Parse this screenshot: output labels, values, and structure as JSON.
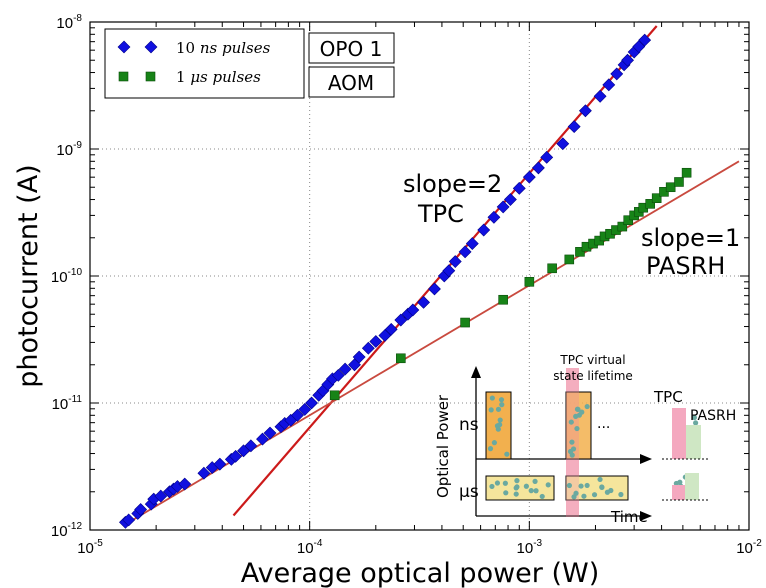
{
  "chart_data": {
    "type": "scatter",
    "title": "",
    "xlabel": "Average optical power (W)",
    "ylabel": "photocurrent (A)",
    "xscale": "log",
    "yscale": "log",
    "xlim": [
      1e-05,
      0.01
    ],
    "ylim": [
      1e-12,
      1e-08
    ],
    "x_ticks": [
      {
        "value": 1e-05,
        "base": "10",
        "exp": "-5"
      },
      {
        "value": 0.0001,
        "base": "10",
        "exp": "-4"
      },
      {
        "value": 0.001,
        "base": "10",
        "exp": "-3"
      },
      {
        "value": 0.01,
        "base": "10",
        "exp": "-2"
      }
    ],
    "y_ticks": [
      {
        "value": 1e-12,
        "base": "10",
        "exp": "-12"
      },
      {
        "value": 1e-11,
        "base": "10",
        "exp": "-11"
      },
      {
        "value": 1e-10,
        "base": "10",
        "exp": "-10"
      },
      {
        "value": 1e-09,
        "base": "10",
        "exp": "-9"
      },
      {
        "value": 1e-08,
        "base": "10",
        "exp": "-8"
      }
    ],
    "grid": "dotted, major decades",
    "legend_placement": "top-left",
    "series": [
      {
        "name": "10 ns pulses",
        "legend_main": "10 ",
        "legend_unit": "ns",
        "legend_rest": " pulses",
        "label_box": "OPO 1",
        "marker": "diamond",
        "color": "#1010e0",
        "x": [
          1.45e-05,
          1.5e-05,
          1.65e-05,
          1.7e-05,
          1.9e-05,
          1.95e-05,
          2.1e-05,
          2.3e-05,
          2.4e-05,
          2.5e-05,
          2.7e-05,
          3.3e-05,
          3.6e-05,
          3.9e-05,
          4.4e-05,
          4.6e-05,
          5e-05,
          5.4e-05,
          6.1e-05,
          6.6e-05,
          7.4e-05,
          7.7e-05,
          8.2e-05,
          8.8e-05,
          9.5e-05,
          0.000102,
          0.00011,
          0.000115,
          0.000121,
          0.000127,
          0.000135,
          0.000145,
          0.00016,
          0.000168,
          0.000185,
          0.0002,
          0.00022,
          0.000235,
          0.00026,
          0.00028,
          0.000295,
          0.00033,
          0.00037,
          0.00041,
          0.00043,
          0.00046,
          0.00051,
          0.00055,
          0.00062,
          0.00069,
          0.00076,
          0.00082,
          0.0009,
          0.001,
          0.0011,
          0.0012,
          0.00142,
          0.0016,
          0.0018,
          0.0021,
          0.0023,
          0.0025,
          0.0027,
          0.0028,
          0.003,
          0.00315,
          0.00335
        ],
        "y": [
          1.15e-12,
          1.2e-12,
          1.35e-12,
          1.45e-12,
          1.6e-12,
          1.75e-12,
          1.85e-12,
          2e-12,
          2.1e-12,
          2.2e-12,
          2.3e-12,
          2.8e-12,
          3.1e-12,
          3.3e-12,
          3.6e-12,
          3.8e-12,
          4.2e-12,
          4.6e-12,
          5.2e-12,
          5.8e-12,
          6.5e-12,
          6.9e-12,
          7.3e-12,
          8e-12,
          8.9e-12,
          1e-11,
          1.15e-11,
          1.25e-11,
          1.4e-11,
          1.55e-11,
          1.65e-11,
          1.85e-11,
          2e-11,
          2.3e-11,
          2.7e-11,
          3.05e-11,
          3.4e-11,
          3.8e-11,
          4.5e-11,
          5e-11,
          5.4e-11,
          6.2e-11,
          7.9e-11,
          1e-10,
          1.1e-10,
          1.3e-10,
          1.55e-10,
          1.8e-10,
          2.3e-10,
          2.9e-10,
          3.5e-10,
          4e-10,
          4.9e-10,
          6e-10,
          7.1e-10,
          8.6e-10,
          1.1e-09,
          1.5e-09,
          2e-09,
          2.6e-09,
          3.2e-09,
          3.9e-09,
          4.6e-09,
          5e-09,
          5.8e-09,
          6.4e-09,
          7.2e-09
        ]
      },
      {
        "name": "1 μs pulses",
        "legend_main": "1 ",
        "legend_unit": "μs",
        "legend_rest": " pulses",
        "label_box": "AOM",
        "marker": "square",
        "color": "#178317",
        "x": [
          0.00013,
          0.00026,
          0.00051,
          0.00076,
          0.001,
          0.00127,
          0.00152,
          0.0017,
          0.00182,
          0.00195,
          0.00208,
          0.0022,
          0.00233,
          0.00248,
          0.00265,
          0.00282,
          0.003,
          0.00315,
          0.0033,
          0.00355,
          0.0038,
          0.0041,
          0.0044,
          0.0048,
          0.0052
        ],
        "y": [
          1.15e-11,
          2.25e-11,
          4.3e-11,
          6.5e-11,
          9e-11,
          1.15e-10,
          1.35e-10,
          1.55e-10,
          1.7e-10,
          1.8e-10,
          1.9e-10,
          2.05e-10,
          2.15e-10,
          2.3e-10,
          2.45e-10,
          2.75e-10,
          3e-10,
          3.2e-10,
          3.45e-10,
          3.7e-10,
          4.1e-10,
          4.6e-10,
          5e-10,
          5.5e-10,
          6.5e-10
        ]
      }
    ],
    "fit_lines": [
      {
        "label_top": "slope=2",
        "label_bottom": "TPC",
        "x": [
          4.5e-05,
          0.0038
        ],
        "y": [
          1.3e-12,
          9.3e-09
        ],
        "color": "#cc1a1a"
      },
      {
        "label_top": "slope=1",
        "label_bottom": "PASRH",
        "x": [
          1.5e-05,
          0.009
        ],
        "y": [
          1.15e-12,
          8e-10
        ],
        "color": "#c94a3f"
      }
    ],
    "inset": {
      "ylabel": "Optical Power",
      "xlabel": "Time",
      "row_top": "ns",
      "row_bottom": "μs",
      "ellipsis": "...",
      "window_label_line1": "TPC virtual",
      "window_label_line2": "state lifetime",
      "legend_tpc": "TPC",
      "legend_pasrh": "PASRH",
      "colors": {
        "ns_pulse": "#f2b04e",
        "us_pulse": "#f5e59c",
        "window": "#f29ab0",
        "dots": "#6aa9a0",
        "tpc": "#f4a8bf",
        "pasrh": "#cfe7c4"
      }
    }
  }
}
